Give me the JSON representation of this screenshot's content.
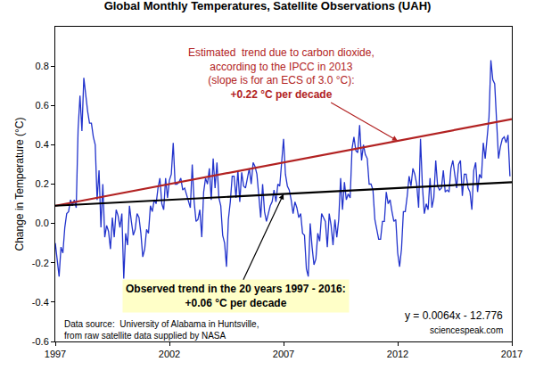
{
  "chart_data": {
    "type": "line",
    "title": "Global Monthly Temperatures, Satellite Observations (UAH)",
    "y_label": "Change in Temperature (°C)",
    "xlim": [
      1997,
      2017
    ],
    "xticks": [
      1997,
      2002,
      2007,
      2012,
      2017
    ],
    "ylim": [
      -0.6,
      1.0
    ],
    "yticks": [
      -0.6,
      -0.4,
      -0.2,
      {
        "value": 0,
        "label": "0.0"
      },
      0.2,
      0.4,
      0.6,
      0.8
    ],
    "grid": false,
    "series": [
      {
        "color": "#2233cc",
        "x": [
          1997.0,
          1997.083,
          1997.167,
          1997.25,
          1997.333,
          1997.417,
          1997.5,
          1997.583,
          1997.667,
          1997.75,
          1997.833,
          1997.917,
          1998.0,
          1998.083,
          1998.167,
          1998.25,
          1998.333,
          1998.417,
          1998.5,
          1998.583,
          1998.667,
          1998.75,
          1998.833,
          1998.917,
          1999.0,
          1999.083,
          1999.167,
          1999.25,
          1999.333,
          1999.417,
          1999.5,
          1999.583,
          1999.667,
          1999.75,
          1999.833,
          1999.917,
          2000.0,
          2000.083,
          2000.167,
          2000.25,
          2000.333,
          2000.417,
          2000.5,
          2000.583,
          2000.667,
          2000.75,
          2000.833,
          2000.917,
          2001.0,
          2001.083,
          2001.167,
          2001.25,
          2001.333,
          2001.417,
          2001.5,
          2001.583,
          2001.667,
          2001.75,
          2001.833,
          2001.917,
          2002.0,
          2002.083,
          2002.167,
          2002.25,
          2002.333,
          2002.417,
          2002.5,
          2002.583,
          2002.667,
          2002.75,
          2002.833,
          2002.917,
          2003.0,
          2003.083,
          2003.167,
          2003.25,
          2003.333,
          2003.417,
          2003.5,
          2003.583,
          2003.667,
          2003.75,
          2003.833,
          2003.917,
          2004.0,
          2004.083,
          2004.167,
          2004.25,
          2004.333,
          2004.417,
          2004.5,
          2004.583,
          2004.667,
          2004.75,
          2004.833,
          2004.917,
          2005.0,
          2005.083,
          2005.167,
          2005.25,
          2005.333,
          2005.417,
          2005.5,
          2005.583,
          2005.667,
          2005.75,
          2005.833,
          2005.917,
          2006.0,
          2006.083,
          2006.167,
          2006.25,
          2006.333,
          2006.417,
          2006.5,
          2006.583,
          2006.667,
          2006.75,
          2006.833,
          2006.917,
          2007.0,
          2007.083,
          2007.167,
          2007.25,
          2007.333,
          2007.417,
          2007.5,
          2007.583,
          2007.667,
          2007.75,
          2007.833,
          2007.917,
          2008.0,
          2008.083,
          2008.167,
          2008.25,
          2008.333,
          2008.417,
          2008.5,
          2008.583,
          2008.667,
          2008.75,
          2008.833,
          2008.917,
          2009.0,
          2009.083,
          2009.167,
          2009.25,
          2009.333,
          2009.417,
          2009.5,
          2009.583,
          2009.667,
          2009.75,
          2009.833,
          2009.917,
          2010.0,
          2010.083,
          2010.167,
          2010.25,
          2010.333,
          2010.417,
          2010.5,
          2010.583,
          2010.667,
          2010.75,
          2010.833,
          2010.917,
          2011.0,
          2011.083,
          2011.167,
          2011.25,
          2011.333,
          2011.417,
          2011.5,
          2011.583,
          2011.667,
          2011.75,
          2011.833,
          2011.917,
          2012.0,
          2012.083,
          2012.167,
          2012.25,
          2012.333,
          2012.417,
          2012.5,
          2012.583,
          2012.667,
          2012.75,
          2012.833,
          2012.917,
          2013.0,
          2013.083,
          2013.167,
          2013.25,
          2013.333,
          2013.417,
          2013.5,
          2013.583,
          2013.667,
          2013.75,
          2013.833,
          2013.917,
          2014.0,
          2014.083,
          2014.167,
          2014.25,
          2014.333,
          2014.417,
          2014.5,
          2014.583,
          2014.667,
          2014.75,
          2014.833,
          2014.917,
          2015.0,
          2015.083,
          2015.167,
          2015.25,
          2015.333,
          2015.417,
          2015.5,
          2015.583,
          2015.667,
          2015.75,
          2015.833,
          2015.917,
          2016.0,
          2016.083,
          2016.167,
          2016.25,
          2016.333,
          2016.417,
          2016.5,
          2016.583,
          2016.667,
          2016.75,
          2016.833,
          2016.917
        ],
        "values": [
          -0.1,
          -0.2,
          -0.27,
          -0.12,
          -0.15,
          -0.02,
          0.05,
          0.06,
          0.12,
          0.09,
          0.12,
          0.08,
          0.48,
          0.65,
          0.47,
          0.74,
          0.64,
          0.57,
          0.51,
          0.51,
          0.44,
          0.4,
          0.12,
          0.27,
          -0.02,
          0.2,
          -0.07,
          -0.01,
          -0.04,
          -0.13,
          0.03,
          -0.07,
          0.07,
          0.04,
          -0.02,
          0.05,
          -0.28,
          -0.05,
          -0.11,
          0.09,
          0.01,
          -0.06,
          -0.03,
          0.05,
          0.03,
          -0.05,
          -0.17,
          -0.13,
          -0.03,
          -0.05,
          0.09,
          0.06,
          0.12,
          0.1,
          0.18,
          0.23,
          0.1,
          0.07,
          0.23,
          0.13,
          0.22,
          0.25,
          0.41,
          0.2,
          0.2,
          0.21,
          0.23,
          0.17,
          0.18,
          0.15,
          0.12,
          0.08,
          0.3,
          0.11,
          0.01,
          0.02,
          0.07,
          -0.07,
          0.16,
          0.23,
          0.2,
          0.28,
          0.12,
          0.33,
          0.18,
          0.31,
          0.13,
          0.09,
          -0.06,
          -0.1,
          -0.22,
          0.02,
          0.11,
          0.24,
          0.24,
          0.13,
          0.27,
          0.11,
          0.26,
          0.19,
          0.18,
          0.23,
          0.28,
          0.2,
          0.31,
          0.29,
          0.25,
          0.14,
          0.03,
          0.2,
          0.06,
          0.01,
          0.05,
          0.09,
          0.11,
          0.17,
          0.11,
          0.2,
          0.19,
          0.3,
          0.43,
          0.25,
          0.19,
          0.17,
          0.12,
          0.05,
          0.11,
          0.08,
          0.03,
          0.05,
          -0.05,
          -0.06,
          -0.23,
          -0.27,
          0.0,
          -0.12,
          -0.21,
          -0.18,
          -0.05,
          -0.09,
          0.05,
          0.03,
          0.01,
          -0.12,
          0.05,
          -0.01,
          -0.11,
          0.02,
          -0.07,
          0.02,
          0.23,
          0.07,
          0.21,
          0.12,
          0.15,
          0.13,
          0.38,
          0.44,
          0.37,
          0.36,
          0.5,
          0.32,
          0.4,
          0.35,
          0.33,
          0.2,
          0.2,
          0.17,
          0.02,
          -0.03,
          -0.08,
          -0.08,
          0.01,
          0.01,
          0.16,
          0.1,
          0.12,
          0.06,
          0.01,
          0.02,
          -0.15,
          -0.22,
          -0.13,
          0.06,
          0.06,
          0.14,
          0.24,
          0.19,
          0.28,
          0.25,
          0.2,
          0.08,
          0.43,
          0.19,
          0.05,
          0.1,
          0.07,
          0.23,
          0.08,
          0.13,
          0.32,
          0.19,
          0.17,
          0.18,
          0.27,
          0.16,
          0.17,
          0.16,
          0.28,
          0.32,
          0.24,
          0.18,
          0.3,
          0.32,
          0.14,
          0.25,
          0.25,
          0.18,
          0.16,
          0.07,
          0.27,
          0.31,
          0.16,
          0.25,
          0.23,
          0.41,
          0.33,
          0.45,
          0.54,
          0.83,
          0.73,
          0.71,
          0.53,
          0.33,
          0.39,
          0.43,
          0.44,
          0.41,
          0.45,
          0.24
        ]
      },
      {
        "color": "#b22222",
        "x": [
          1997,
          2017
        ],
        "values": [
          0.09,
          0.53
        ]
      },
      {
        "color": "#000000",
        "x": [
          1997,
          2017
        ],
        "values": [
          0.09,
          0.21
        ]
      }
    ],
    "annotations": [
      {
        "text": [
          "Estimated  trend due to carbon dioxide,",
          "according to the IPCC in 2013",
          "(slope is for an ECS of 3.0 °C):",
          "+0.22 °C per decade"
        ],
        "color": "#b22222"
      },
      {
        "text": [
          "Observed trend in the 20 years 1997 - 2016:",
          "+0.06 °C per decade"
        ],
        "color": "#000000"
      },
      {
        "text": [
          "Data source:  University of Alabama in Huntsville,",
          "from raw satellite data supplied by NASA"
        ],
        "color": "#000000"
      },
      {
        "text": [
          "y = 0.0064x - 12.776"
        ],
        "color": "#000000"
      },
      {
        "text": [
          "sciencespeak.com"
        ],
        "color": "#000000"
      }
    ]
  }
}
